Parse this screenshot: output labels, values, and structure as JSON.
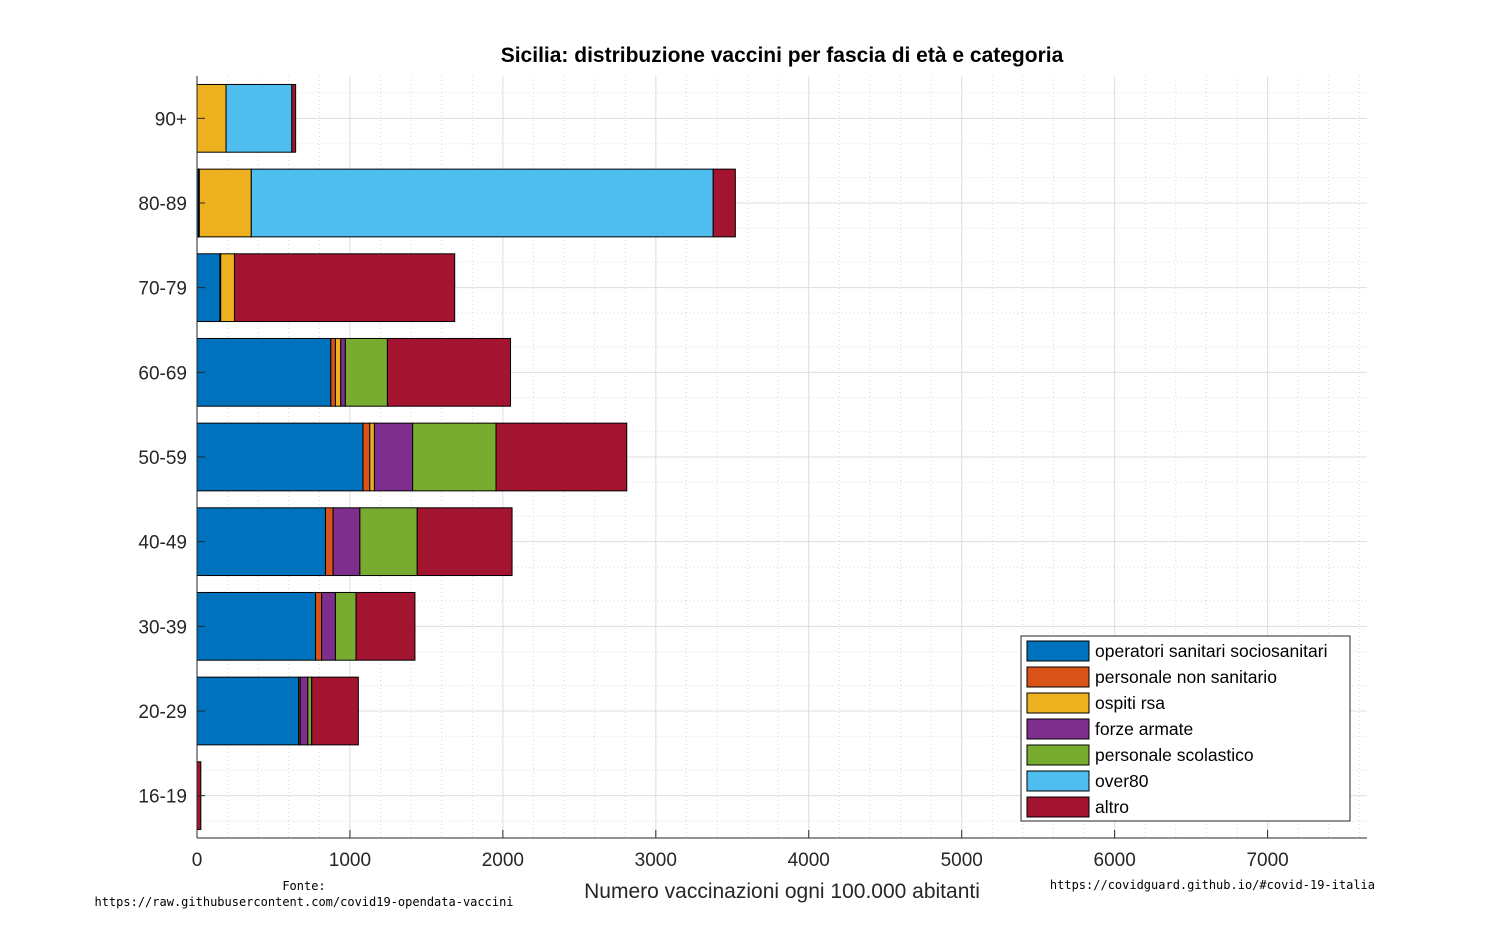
{
  "chart_data": {
    "type": "bar",
    "orientation": "horizontal",
    "stacked": true,
    "title": "Sicilia: distribuzione vaccini per fascia di età e categoria",
    "xlabel": "Numero vaccinazioni ogni 100.000 abitanti",
    "ylabel": "",
    "xlim": [
      0,
      7650
    ],
    "xticks": [
      0,
      1000,
      2000,
      3000,
      4000,
      5000,
      6000,
      7000
    ],
    "grid": true,
    "legend_position": "bottom-right",
    "categories": [
      "90+",
      "80-89",
      "70-79",
      "60-69",
      "50-59",
      "40-49",
      "30-39",
      "20-29",
      "16-19"
    ],
    "series": [
      {
        "name": "operatori sanitari sociosanitari",
        "color": "#0072BD",
        "values": [
          0,
          10,
          150,
          875,
          1085,
          840,
          775,
          665,
          0
        ]
      },
      {
        "name": "personale non sanitario",
        "color": "#D95319",
        "values": [
          0,
          5,
          5,
          30,
          45,
          50,
          40,
          10,
          0
        ]
      },
      {
        "name": "ospiti rsa",
        "color": "#EDB120",
        "values": [
          190,
          340,
          90,
          35,
          30,
          0,
          0,
          0,
          0
        ]
      },
      {
        "name": "forze armate",
        "color": "#7E2F8E",
        "values": [
          0,
          0,
          0,
          30,
          250,
          175,
          90,
          50,
          0
        ]
      },
      {
        "name": "personale scolastico",
        "color": "#77AC30",
        "values": [
          0,
          0,
          0,
          275,
          545,
          375,
          135,
          25,
          0
        ]
      },
      {
        "name": "over80",
        "color": "#4DBEEE",
        "values": [
          430,
          3020,
          0,
          0,
          0,
          0,
          0,
          0,
          0
        ]
      },
      {
        "name": "altro",
        "color": "#A2142F",
        "values": [
          25,
          145,
          1440,
          805,
          855,
          620,
          385,
          305,
          25
        ]
      }
    ]
  },
  "notes": {
    "source_label": "Fonte:",
    "source_url": "https://raw.githubusercontent.com/covid19-opendata-vaccini",
    "site_url": "https://covidguard.github.io/#covid-19-italia"
  }
}
